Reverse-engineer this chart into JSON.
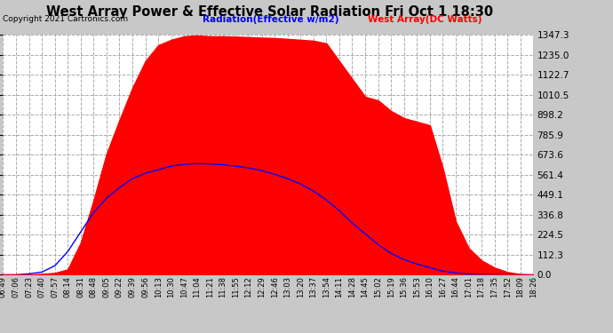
{
  "title": "West Array Power & Effective Solar Radiation Fri Oct 1 18:30",
  "copyright": "Copyright 2021 Cartronics.com",
  "legend_radiation": "Radiation(Effective w/m2)",
  "legend_west": "West Array(DC Watts)",
  "bg_color": "#c8c8c8",
  "plot_bg_color": "#ffffff",
  "title_color": "black",
  "copyright_color": "black",
  "radiation_color": "blue",
  "west_color": "red",
  "yticks": [
    0.0,
    112.3,
    224.5,
    336.8,
    449.1,
    561.4,
    673.6,
    785.9,
    898.2,
    1010.5,
    1122.7,
    1235.0,
    1347.3
  ],
  "ymax": 1347.3,
  "ymin": 0.0,
  "grid_color": "#aaaaaa",
  "grid_style": "--",
  "time_labels": [
    "06:49",
    "07:06",
    "07:23",
    "07:40",
    "07:57",
    "08:14",
    "08:31",
    "08:48",
    "09:05",
    "09:22",
    "09:39",
    "09:56",
    "10:13",
    "10:30",
    "10:47",
    "11:04",
    "11:21",
    "11:38",
    "11:55",
    "12:12",
    "12:29",
    "12:46",
    "13:03",
    "13:20",
    "13:37",
    "13:54",
    "14:11",
    "14:28",
    "14:45",
    "15:02",
    "15:19",
    "15:36",
    "15:53",
    "16:10",
    "16:27",
    "16:44",
    "17:01",
    "17:18",
    "17:35",
    "17:52",
    "18:09",
    "18:26"
  ],
  "west_raw": [
    0,
    0,
    0,
    5,
    10,
    30,
    180,
    420,
    680,
    870,
    1050,
    1200,
    1290,
    1320,
    1340,
    1345,
    1340,
    1340,
    1338,
    1335,
    1332,
    1330,
    1325,
    1320,
    1315,
    1300,
    1200,
    1100,
    1000,
    980,
    920,
    880,
    860,
    840,
    600,
    300,
    150,
    80,
    40,
    15,
    3,
    0
  ],
  "rad_raw": [
    0,
    0,
    5,
    15,
    50,
    130,
    240,
    350,
    430,
    490,
    540,
    570,
    590,
    610,
    620,
    625,
    622,
    618,
    610,
    600,
    585,
    565,
    540,
    510,
    470,
    420,
    360,
    290,
    230,
    170,
    120,
    85,
    60,
    40,
    20,
    10,
    5,
    2,
    1,
    0,
    0,
    0
  ]
}
